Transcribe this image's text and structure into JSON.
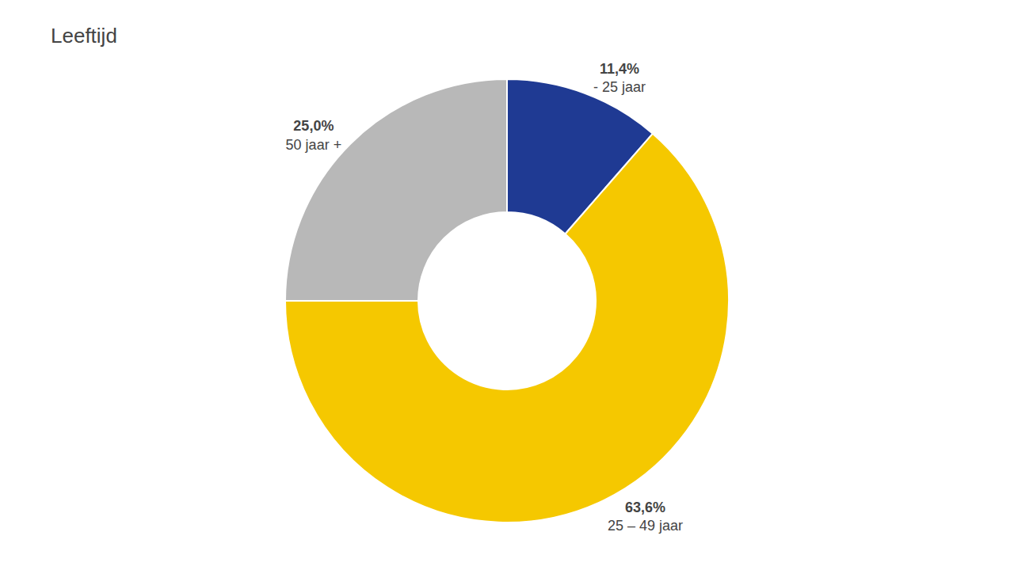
{
  "chart_data": {
    "type": "donut",
    "title": "Leeftijd",
    "categories": [
      "- 25 jaar",
      "25 – 49 jaar",
      "50 jaar +"
    ],
    "values": [
      11.4,
      63.6,
      25.0
    ],
    "value_labels": [
      "11,4%",
      "63,6%",
      "25,0%"
    ],
    "colors": [
      "#1f3a93",
      "#f5c800",
      "#b8b8b8"
    ],
    "data_labels": true
  }
}
